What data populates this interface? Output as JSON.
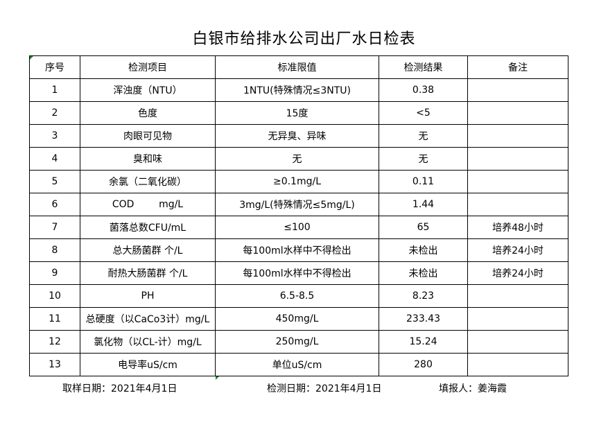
{
  "title": "白银市给排水公司出厂水日检表",
  "headers": [
    "序号",
    "检测项目",
    "标准限值",
    "检测结果",
    "备注"
  ],
  "rows": [
    [
      "1",
      "浑浊度（NTU）",
      "1NTU(特殊情况≤3NTU)",
      "0.38",
      ""
    ],
    [
      "2",
      "色度",
      "15度",
      "<5",
      ""
    ],
    [
      "3",
      "肉眼可见物",
      "无异臭、异味",
      "无",
      ""
    ],
    [
      "4",
      "臭和味",
      "无",
      "无",
      ""
    ],
    [
      "5",
      "余氯（二氧化碳）",
      "≥0.1mg/L",
      "0.11",
      ""
    ],
    [
      "6",
      "COD        mg/L",
      "3mg/L(特殊情况≤5mg/L)",
      "1.44",
      ""
    ],
    [
      "7",
      "菌落总数CFU/mL",
      "≤100",
      "65",
      "培养48小时"
    ],
    [
      "8",
      "总大肠菌群 个/L",
      "每100ml水样中不得检出",
      "未检出",
      "培养24小时"
    ],
    [
      "9",
      "耐热大肠菌群 个/L",
      "每100ml水样中不得检出",
      "未检出",
      "培养24小时"
    ],
    [
      "10",
      "PH",
      "6.5-8.5",
      "8.23",
      ""
    ],
    [
      "11",
      "总硬度（以CaCo3计）mg/L",
      "450mg/L",
      "233.43",
      ""
    ],
    [
      "12",
      "氯化物（以CL-计）mg/L",
      "250mg/L",
      "15.24",
      ""
    ],
    [
      "13",
      "电导率uS/cm",
      "单位uS/cm",
      "280",
      ""
    ]
  ],
  "footer": {
    "sampling_date": "取样日期：2021年4月1日",
    "test_date": "检测日期：2021年4月1日",
    "reporter": "填报人：姜海霞"
  }
}
